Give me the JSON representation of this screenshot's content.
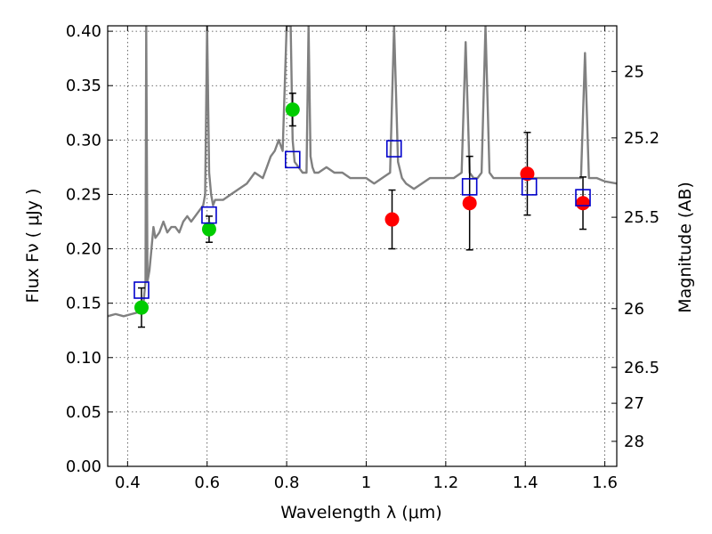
{
  "chart_data": {
    "type": "scatter",
    "xlabel": "Wavelength  λ (μm)",
    "ylabel": "Flux  Fν  ( μJy )",
    "y2label": "Magnitude (AB)",
    "xlim": [
      0.35,
      1.63
    ],
    "ylim": [
      0.0,
      0.405
    ],
    "grid": true,
    "x_ticks": [
      0.4,
      0.6,
      0.8,
      1.0,
      1.2,
      1.4,
      1.6
    ],
    "x_tick_labels": [
      "0.4",
      "0.6",
      "0.8",
      "1",
      "1.2",
      "1.4",
      "1.6"
    ],
    "y_ticks": [
      0.0,
      0.05,
      0.1,
      0.15,
      0.2,
      0.25,
      0.3,
      0.35,
      0.4
    ],
    "y_tick_labels": [
      "0.00",
      "0.05",
      "0.10",
      "0.15",
      "0.20",
      "0.25",
      "0.30",
      "0.35",
      "0.40"
    ],
    "y2_ticks": [
      {
        "label": "25",
        "flux": 0.363
      },
      {
        "label": "25.2",
        "flux": 0.302
      },
      {
        "label": "25.5",
        "flux": 0.229
      },
      {
        "label": "26",
        "flux": 0.145
      },
      {
        "label": "26.5",
        "flux": 0.091
      },
      {
        "label": "27",
        "flux": 0.058
      },
      {
        "label": "28",
        "flux": 0.023
      }
    ],
    "series": [
      {
        "kind": "line",
        "color": "#808080",
        "x": [
          0.35,
          0.37,
          0.39,
          0.41,
          0.42,
          0.43,
          0.435,
          0.44,
          0.445,
          0.447,
          0.45,
          0.455,
          0.46,
          0.465,
          0.47,
          0.48,
          0.49,
          0.5,
          0.51,
          0.52,
          0.53,
          0.54,
          0.55,
          0.56,
          0.57,
          0.58,
          0.59,
          0.595,
          0.6,
          0.605,
          0.61,
          0.615,
          0.62,
          0.64,
          0.66,
          0.68,
          0.7,
          0.72,
          0.74,
          0.75,
          0.76,
          0.77,
          0.78,
          0.79,
          0.8,
          0.805,
          0.81,
          0.815,
          0.82,
          0.83,
          0.84,
          0.85,
          0.855,
          0.86,
          0.865,
          0.87,
          0.88,
          0.9,
          0.92,
          0.94,
          0.96,
          0.98,
          1.0,
          1.02,
          1.04,
          1.06,
          1.07,
          1.08,
          1.09,
          1.1,
          1.12,
          1.14,
          1.16,
          1.18,
          1.2,
          1.22,
          1.24,
          1.25,
          1.26,
          1.27,
          1.28,
          1.29,
          1.3,
          1.31,
          1.32,
          1.34,
          1.36,
          1.38,
          1.4,
          1.42,
          1.44,
          1.46,
          1.48,
          1.5,
          1.52,
          1.53,
          1.54,
          1.55,
          1.56,
          1.58,
          1.6,
          1.63
        ],
        "values": [
          0.138,
          0.14,
          0.138,
          0.14,
          0.141,
          0.142,
          0.145,
          0.15,
          0.17,
          0.405,
          0.17,
          0.18,
          0.2,
          0.22,
          0.21,
          0.215,
          0.225,
          0.215,
          0.22,
          0.22,
          0.215,
          0.225,
          0.23,
          0.225,
          0.23,
          0.235,
          0.24,
          0.25,
          0.405,
          0.27,
          0.25,
          0.24,
          0.245,
          0.245,
          0.25,
          0.255,
          0.26,
          0.27,
          0.265,
          0.275,
          0.285,
          0.29,
          0.3,
          0.29,
          0.405,
          0.405,
          0.405,
          0.3,
          0.28,
          0.275,
          0.27,
          0.27,
          0.405,
          0.285,
          0.275,
          0.27,
          0.27,
          0.275,
          0.27,
          0.27,
          0.265,
          0.265,
          0.265,
          0.26,
          0.265,
          0.27,
          0.405,
          0.28,
          0.265,
          0.26,
          0.255,
          0.26,
          0.265,
          0.265,
          0.265,
          0.265,
          0.27,
          0.39,
          0.27,
          0.265,
          0.265,
          0.27,
          0.405,
          0.27,
          0.265,
          0.265,
          0.265,
          0.265,
          0.265,
          0.265,
          0.265,
          0.265,
          0.265,
          0.265,
          0.265,
          0.265,
          0.265,
          0.38,
          0.265,
          0.265,
          0.262,
          0.26
        ]
      },
      {
        "kind": "points",
        "color": "#00cc00",
        "x": [
          0.435,
          0.605,
          0.815
        ],
        "values": [
          0.146,
          0.218,
          0.328
        ],
        "errors": [
          0.018,
          0.012,
          0.015
        ]
      },
      {
        "kind": "points",
        "color": "#ff0000",
        "x": [
          1.065,
          1.26,
          1.405,
          1.545
        ],
        "values": [
          0.227,
          0.242,
          0.269,
          0.242
        ],
        "errors": [
          0.027,
          0.043,
          0.038,
          0.024
        ]
      },
      {
        "kind": "squares",
        "color": "#0000cc",
        "x": [
          0.435,
          0.605,
          0.815,
          1.07,
          1.26,
          1.41,
          1.545
        ],
        "values": [
          0.162,
          0.231,
          0.282,
          0.292,
          0.257,
          0.257,
          0.247
        ]
      }
    ]
  }
}
